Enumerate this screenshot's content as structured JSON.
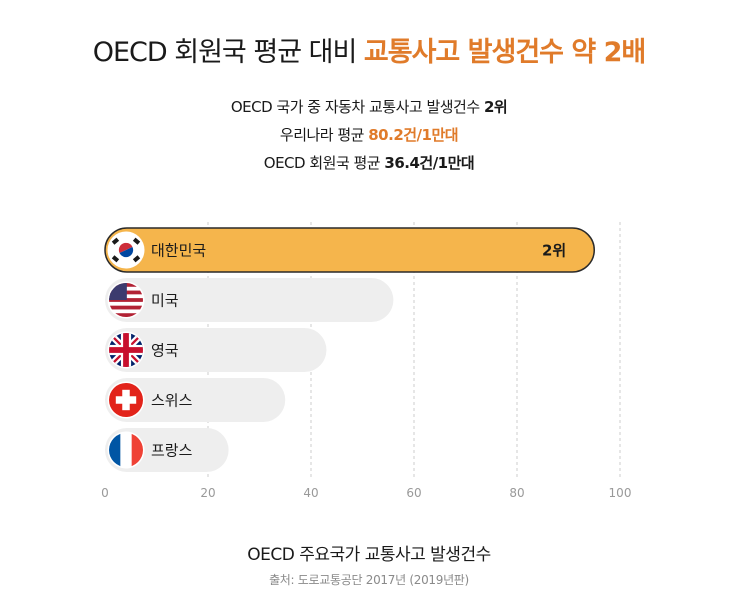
{
  "headline": {
    "part1": "OECD 회원국 평균 대비 ",
    "part2": "교통사고 발생건수 약 2배"
  },
  "subtitle": {
    "line1_text": "OECD 국가 중 자동차 교통사고 발생건수 ",
    "line1_bold": "2위",
    "line2_text": "우리나라 평균 ",
    "line2_value": "80.2건/1만대",
    "line3_text": "OECD 회원국 평균 ",
    "line3_value": "36.4건/1만대"
  },
  "colors": {
    "highlight": "#f5b54c",
    "bar": "#eeeeee",
    "accent_text": "#e07b2a",
    "grid": "#cccccc",
    "tick": "#999999"
  },
  "chart_data": {
    "type": "bar",
    "orientation": "horizontal",
    "categories": [
      "대한민국",
      "미국",
      "영국",
      "스위스",
      "프랑스"
    ],
    "values": [
      95,
      56,
      43,
      35,
      24
    ],
    "flags": [
      "korea-flag-icon",
      "usa-flag-icon",
      "uk-flag-icon",
      "switzerland-flag-icon",
      "france-flag-icon"
    ],
    "highlight_index": 0,
    "data_labels": [
      "2위",
      "",
      "",
      "",
      ""
    ],
    "xlim": [
      0,
      100
    ],
    "xticks": [
      0,
      20,
      40,
      60,
      80,
      100
    ],
    "grid": "vertical dashed",
    "title": "OECD 주요국가 교통사고 발생건수",
    "source": "출처: 도로교통공단 2017년 (2019년판)"
  }
}
